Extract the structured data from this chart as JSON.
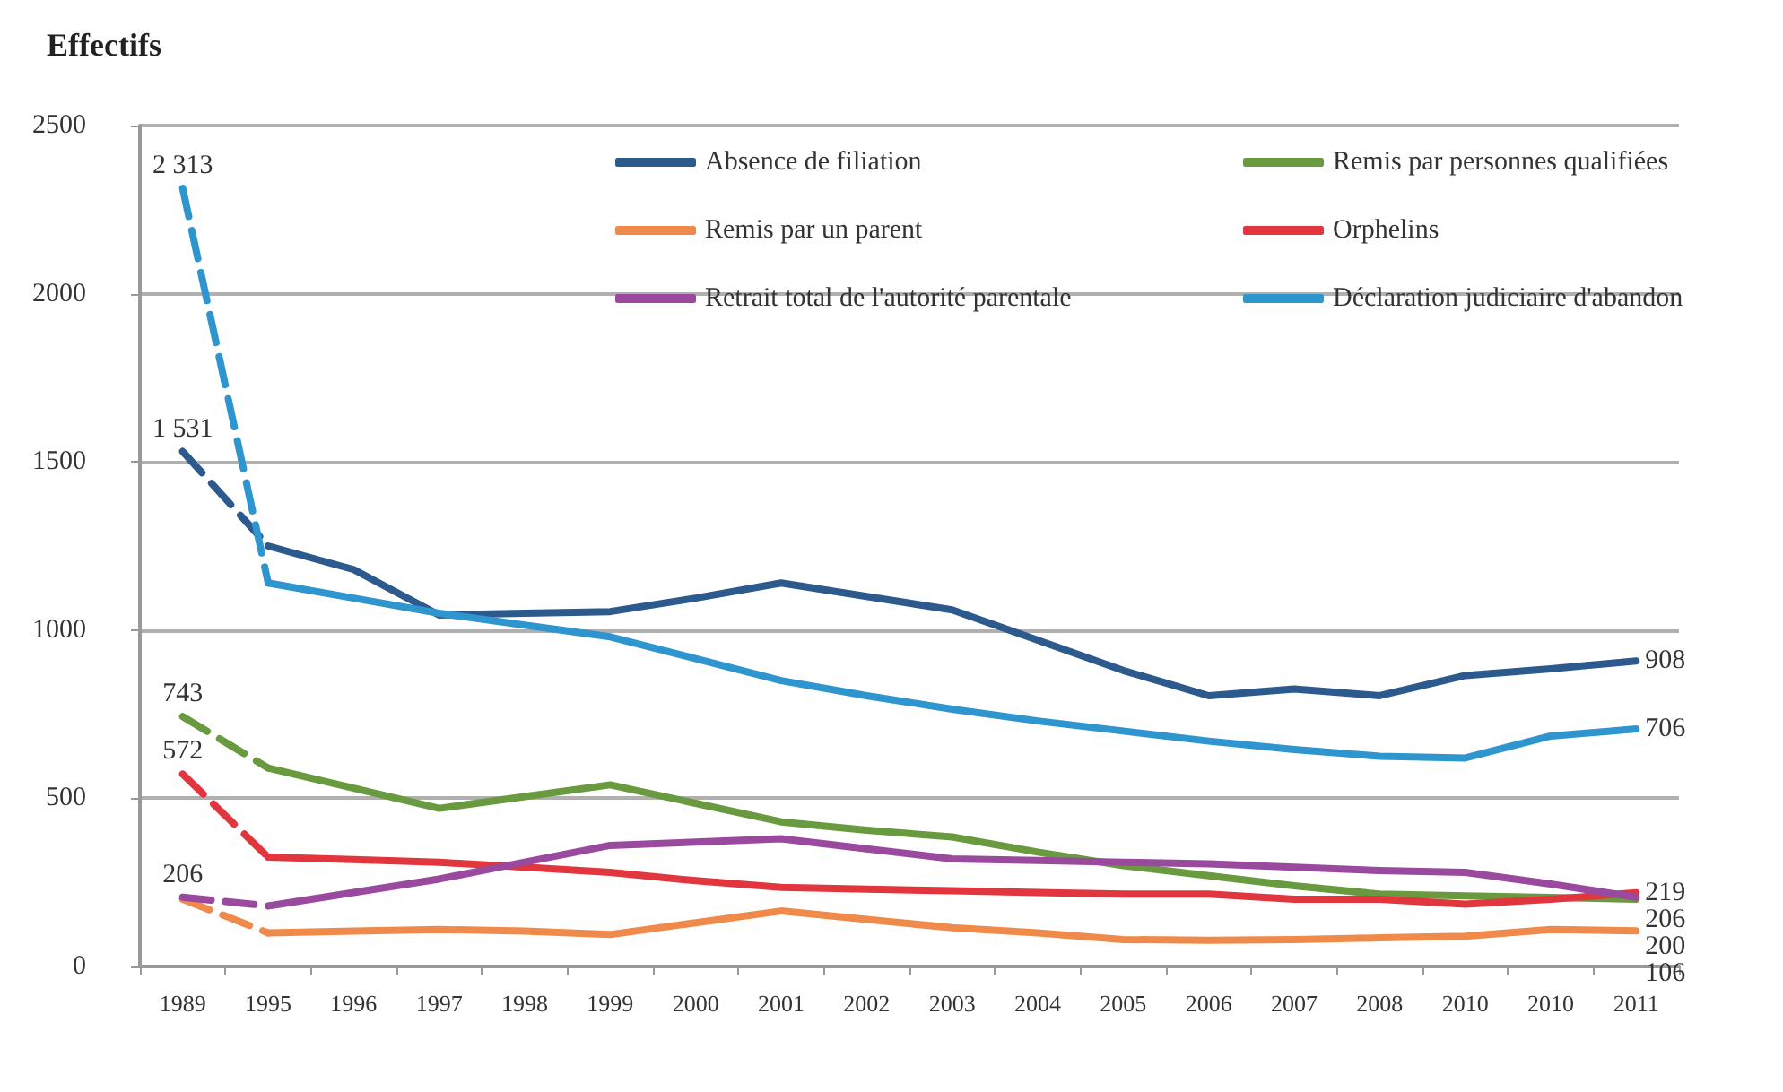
{
  "chart_data": {
    "type": "line",
    "ylabel": "Effectifs",
    "categories": [
      "1989",
      "1995",
      "1996",
      "1997",
      "1998",
      "1999",
      "2000",
      "2001",
      "2002",
      "2003",
      "2004",
      "2005",
      "2006",
      "2007",
      "2008",
      "2010",
      "2010",
      "2011"
    ],
    "ylim": [
      0,
      2500
    ],
    "yticks": [
      0,
      500,
      1000,
      1500,
      2000,
      2500
    ],
    "grid": "y",
    "legend": "top right",
    "marker": "none",
    "series": [
      {
        "name": "Absence de filiation",
        "color": "#2c5a8c",
        "line_style": "solid",
        "values": [
          null,
          1250,
          1180,
          1045,
          1050,
          1055,
          1095,
          1140,
          1100,
          1060,
          970,
          880,
          805,
          825,
          805,
          865,
          885,
          908
        ],
        "value_labels": [
          null,
          null,
          null,
          null,
          null,
          null,
          null,
          null,
          null,
          null,
          null,
          null,
          null,
          null,
          null,
          null,
          null,
          "908"
        ]
      },
      {
        "name": "Remis par personnes qualifiées",
        "color": "#6a9a3f",
        "line_style": "solid",
        "values": [
          null,
          590,
          530,
          470,
          505,
          540,
          485,
          430,
          405,
          385,
          340,
          300,
          270,
          240,
          215,
          210,
          205,
          200
        ],
        "value_labels": [
          null,
          null,
          null,
          null,
          null,
          null,
          null,
          null,
          null,
          null,
          null,
          null,
          null,
          null,
          null,
          null,
          null,
          "200"
        ]
      },
      {
        "name": "Remis par un parent",
        "color": "#f08a4b",
        "line_style": "solid",
        "values": [
          null,
          100,
          105,
          110,
          105,
          95,
          130,
          165,
          140,
          115,
          100,
          80,
          78,
          80,
          85,
          90,
          110,
          106
        ],
        "value_labels": [
          null,
          null,
          null,
          null,
          null,
          null,
          null,
          null,
          null,
          null,
          null,
          null,
          null,
          null,
          null,
          null,
          null,
          "106"
        ]
      },
      {
        "name": "Orphelins",
        "color": "#e2363e",
        "line_style": "solid",
        "values": [
          null,
          325,
          318,
          310,
          295,
          280,
          255,
          235,
          230,
          225,
          220,
          215,
          215,
          200,
          200,
          185,
          200,
          219
        ],
        "value_labels": [
          null,
          null,
          null,
          null,
          null,
          null,
          null,
          null,
          null,
          null,
          null,
          null,
          null,
          null,
          null,
          null,
          null,
          "219"
        ]
      },
      {
        "name": "Retrait total de l'autorité parentale",
        "color": "#9a4a9e",
        "line_style": "solid",
        "values": [
          null,
          180,
          220,
          260,
          310,
          360,
          370,
          380,
          350,
          320,
          315,
          310,
          305,
          295,
          285,
          280,
          245,
          206
        ],
        "value_labels": [
          null,
          null,
          null,
          null,
          null,
          null,
          null,
          null,
          null,
          null,
          null,
          null,
          null,
          null,
          null,
          null,
          null,
          "206"
        ]
      },
      {
        "name": "Déclaration judiciaire d'abandon",
        "color": "#2e95cf",
        "line_style": "solid",
        "values": [
          null,
          1140,
          1095,
          1050,
          1015,
          980,
          915,
          850,
          805,
          765,
          730,
          700,
          670,
          645,
          625,
          620,
          685,
          706
        ],
        "value_labels": [
          null,
          null,
          null,
          null,
          null,
          null,
          null,
          null,
          null,
          null,
          null,
          null,
          null,
          null,
          null,
          null,
          null,
          "706"
        ]
      },
      {
        "color": "#2c5a8c",
        "line_style": "dashed",
        "values": [
          1531,
          1250,
          null,
          null,
          null,
          null,
          null,
          null,
          null,
          null,
          null,
          null,
          null,
          null,
          null,
          null,
          null,
          null
        ],
        "value_labels": [
          "1 531",
          null,
          null,
          null,
          null,
          null,
          null,
          null,
          null,
          null,
          null,
          null,
          null,
          null,
          null,
          null,
          null,
          null
        ]
      },
      {
        "color": "#6a9a3f",
        "line_style": "dashed",
        "values": [
          743,
          590,
          null,
          null,
          null,
          null,
          null,
          null,
          null,
          null,
          null,
          null,
          null,
          null,
          null,
          null,
          null,
          null
        ],
        "value_labels": [
          "743",
          null,
          null,
          null,
          null,
          null,
          null,
          null,
          null,
          null,
          null,
          null,
          null,
          null,
          null,
          null,
          null,
          null
        ]
      },
      {
        "color": "#f08a4b",
        "line_style": "dashed",
        "values": [
          200,
          100,
          null,
          null,
          null,
          null,
          null,
          null,
          null,
          null,
          null,
          null,
          null,
          null,
          null,
          null,
          null,
          null
        ],
        "value_labels": [
          null,
          null,
          null,
          null,
          null,
          null,
          null,
          null,
          null,
          null,
          null,
          null,
          null,
          null,
          null,
          null,
          null,
          null
        ]
      },
      {
        "color": "#e2363e",
        "line_style": "dashed",
        "values": [
          572,
          325,
          null,
          null,
          null,
          null,
          null,
          null,
          null,
          null,
          null,
          null,
          null,
          null,
          null,
          null,
          null,
          null
        ],
        "value_labels": [
          "572",
          null,
          null,
          null,
          null,
          null,
          null,
          null,
          null,
          null,
          null,
          null,
          null,
          null,
          null,
          null,
          null,
          null
        ]
      },
      {
        "color": "#9a4a9e",
        "line_style": "dashed",
        "values": [
          206,
          180,
          null,
          null,
          null,
          null,
          null,
          null,
          null,
          null,
          null,
          null,
          null,
          null,
          null,
          null,
          null,
          null
        ],
        "value_labels": [
          "206",
          null,
          null,
          null,
          null,
          null,
          null,
          null,
          null,
          null,
          null,
          null,
          null,
          null,
          null,
          null,
          null,
          null
        ]
      },
      {
        "color": "#2e95cf",
        "line_style": "dashed",
        "values": [
          2313,
          1140,
          null,
          null,
          null,
          null,
          null,
          null,
          null,
          null,
          null,
          null,
          null,
          null,
          null,
          null,
          null,
          null
        ],
        "value_labels": [
          "2 313",
          null,
          null,
          null,
          null,
          null,
          null,
          null,
          null,
          null,
          null,
          null,
          null,
          null,
          null,
          null,
          null,
          null
        ]
      }
    ]
  }
}
